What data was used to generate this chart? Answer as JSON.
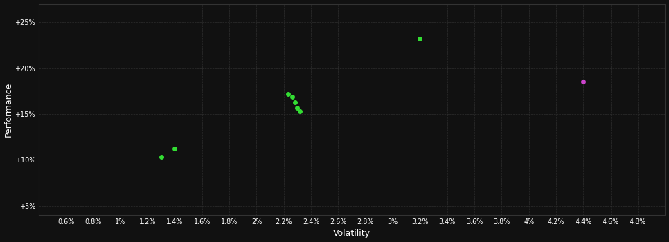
{
  "background_color": "#111111",
  "xlabel": "Volatility",
  "ylabel": "Performance",
  "xlim": [
    0.004,
    0.05
  ],
  "ylim": [
    0.04,
    0.27
  ],
  "xticks": [
    0.006,
    0.008,
    0.01,
    0.012,
    0.014,
    0.016,
    0.018,
    0.02,
    0.022,
    0.024,
    0.026,
    0.028,
    0.03,
    0.032,
    0.034,
    0.036,
    0.038,
    0.04,
    0.042,
    0.044,
    0.046,
    0.048
  ],
  "yticks": [
    0.05,
    0.1,
    0.15,
    0.2,
    0.25
  ],
  "points_green": [
    [
      0.013,
      0.103
    ],
    [
      0.014,
      0.112
    ],
    [
      0.0223,
      0.172
    ],
    [
      0.0226,
      0.169
    ],
    [
      0.0228,
      0.163
    ],
    [
      0.023,
      0.157
    ],
    [
      0.0232,
      0.153
    ],
    [
      0.032,
      0.232
    ]
  ],
  "points_magenta": [
    [
      0.044,
      0.185
    ]
  ],
  "green_color": "#33dd33",
  "magenta_color": "#cc44cc",
  "marker_size": 5
}
